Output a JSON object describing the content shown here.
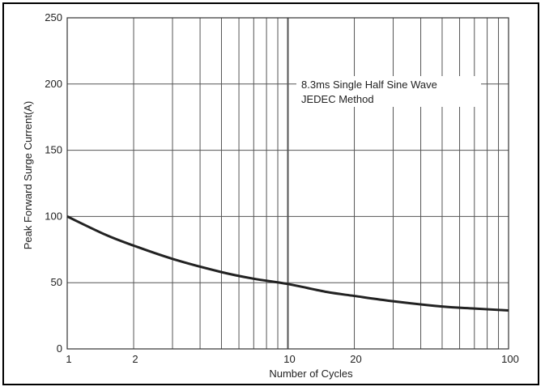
{
  "chart_data": {
    "type": "line",
    "title": "",
    "xlabel": "Number of Cycles",
    "ylabel": "Peak Forward Surge Current(A)",
    "x_scale": "log",
    "xlim": [
      1,
      100
    ],
    "ylim": [
      0,
      250
    ],
    "grid": true,
    "x_tick_labels": [
      "1",
      "2",
      "10",
      "20",
      "100"
    ],
    "x_tick_values": [
      1,
      2,
      10,
      20,
      100
    ],
    "y_tick_labels": [
      "0",
      "50",
      "100",
      "150",
      "200",
      "250"
    ],
    "y_tick_values": [
      0,
      50,
      100,
      150,
      200,
      250
    ],
    "annotations": [
      "8.3ms Single Half Sine Wave",
      "JEDEC Method"
    ],
    "series": [
      {
        "x": [
          1,
          1.5,
          2,
          3,
          5,
          7,
          10,
          15,
          20,
          30,
          50,
          70,
          100
        ],
        "values": [
          100,
          86,
          78,
          68,
          58,
          53,
          49,
          43,
          40,
          36,
          32,
          30.5,
          29
        ]
      }
    ],
    "colors": {
      "line": "#222222",
      "grid": "#555555",
      "axis": "#333333"
    }
  }
}
